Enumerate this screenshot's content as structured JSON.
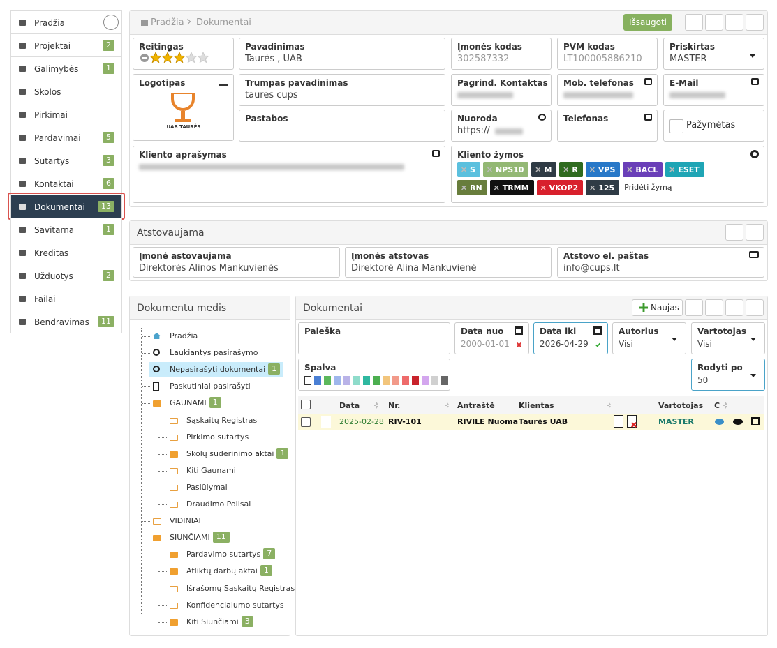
{
  "sidebar": [
    {
      "label": "Pradžia"
    },
    {
      "label": "Projektai",
      "badge": 2
    },
    {
      "label": "Galimybės",
      "badge": 1
    },
    {
      "label": "Skolos"
    },
    {
      "label": "Pirkimai"
    },
    {
      "label": "Pardavimai",
      "badge": 5
    },
    {
      "label": "Sutartys",
      "badge": 3
    },
    {
      "label": "Kontaktai",
      "badge": 6
    },
    {
      "label": "Dokumentai",
      "badge": 13,
      "active": true
    },
    {
      "label": "Savitarna",
      "badge": 1
    },
    {
      "label": "Kreditas"
    },
    {
      "label": "Užduotys",
      "badge": 2
    },
    {
      "label": "Failai"
    },
    {
      "label": "Bendravimas",
      "badge": 11
    }
  ],
  "breadcrumb": [
    "Pradžia",
    "Dokumentai"
  ],
  "save_button": "Išsaugoti",
  "client_fields": [
    {
      "label": "Reitingas",
      "rating": 3
    },
    {
      "label": "Pavadinimas",
      "value": "Taurės , UAB"
    },
    {
      "label": "Įmonės kodas",
      "value": "302587332"
    },
    {
      "label": "PVM kodas",
      "value": "LT100005886210"
    },
    {
      "label": "Priskirtas",
      "value": "MASTER"
    },
    {
      "label": "Logotipas",
      "logo_text": "UAB TAURĖS"
    },
    {
      "label": "Trumpas pavadinimas",
      "value": "taures cups"
    },
    {
      "label": "Pagrind. Kontaktas"
    },
    {
      "label": "Mob. telefonas"
    },
    {
      "label": "E-Mail"
    },
    {
      "label": "Pastabos"
    },
    {
      "label": "Nuoroda",
      "value": "https://"
    },
    {
      "label": "Telefonas"
    },
    {
      "label": "Pažymėtas"
    },
    {
      "label": "Kliento aprašymas"
    },
    {
      "label": "Kliento žymos"
    }
  ],
  "tags": [
    {
      "name": "S",
      "color": "#5bc0de"
    },
    {
      "name": "NPS10",
      "color": "#93b874"
    },
    {
      "name": "M",
      "color": "#2f3b45"
    },
    {
      "name": "R",
      "color": "#2f6b1f"
    },
    {
      "name": "VPS",
      "color": "#2878c8"
    },
    {
      "name": "BACL",
      "color": "#6a3fb8"
    },
    {
      "name": "ESET",
      "color": "#1fa5b5"
    },
    {
      "name": "RN",
      "color": "#687d3c"
    },
    {
      "name": "TRMM",
      "color": "#111111"
    },
    {
      "name": "VKOP2",
      "color": "#d8202c"
    },
    {
      "name": "125",
      "color": "#2f3b45"
    }
  ],
  "add_tag": "Pridėti žymą",
  "representation": {
    "title": "Atstovaujama",
    "fields": [
      {
        "label": "Įmonė astovaujama",
        "value": "Direktorės Alinos Mankuvienės"
      },
      {
        "label": "Įmonės atstovas",
        "value": "Direktorė Alina Mankuvienė"
      },
      {
        "label": "Atstovo el. paštas",
        "value": "info@cups.lt"
      }
    ]
  },
  "tree": {
    "title": "Dokumentu medis",
    "items": [
      {
        "label": "Pradžia",
        "level": 0,
        "icon": "home"
      },
      {
        "label": "Laukiantys pasirašymo",
        "level": 0,
        "icon": "clock"
      },
      {
        "label": "Nepasirašyti dokumentai",
        "level": 0,
        "icon": "clock",
        "badge": 1,
        "selected": true
      },
      {
        "label": "Paskutiniai pasirašyti",
        "level": 0,
        "icon": "doc"
      },
      {
        "label": "GAUNAMI",
        "level": 0,
        "icon": "folder",
        "badge": 1
      },
      {
        "label": "Sąskaitų Registras",
        "level": 1,
        "icon": "folder"
      },
      {
        "label": "Pirkimo sutartys",
        "level": 1,
        "icon": "folder"
      },
      {
        "label": "Skolų suderinimo aktai",
        "level": 1,
        "icon": "folder",
        "badge": 1
      },
      {
        "label": "Kiti Gaunami",
        "level": 1,
        "icon": "folder"
      },
      {
        "label": "Pasiūlymai",
        "level": 1,
        "icon": "folder"
      },
      {
        "label": "Draudimo Polisai",
        "level": 1,
        "icon": "folder"
      },
      {
        "label": "VIDINIAI",
        "level": 0,
        "icon": "folder"
      },
      {
        "label": "SIUNČIAMI",
        "level": 0,
        "icon": "folder",
        "badge": 11
      },
      {
        "label": "Pardavimo sutartys",
        "level": 1,
        "icon": "folder",
        "badge": 7
      },
      {
        "label": "Atliktų darbų aktai",
        "level": 1,
        "icon": "folder",
        "badge": 1
      },
      {
        "label": "Išrašomų Sąskaitų Registras",
        "level": 1,
        "icon": "folder"
      },
      {
        "label": "Konfidencialumo sutartys",
        "level": 1,
        "icon": "folder"
      },
      {
        "label": "Kiti Siunčiami",
        "level": 1,
        "icon": "folder",
        "badge": 3
      }
    ]
  },
  "documents": {
    "title": "Dokumentai",
    "new_button": "Naujas",
    "filters": [
      {
        "label": "Paieška"
      },
      {
        "label": "Data nuo",
        "value": "2000-01-01"
      },
      {
        "label": "Data iki",
        "value": "2026-04-29"
      },
      {
        "label": "Autorius",
        "value": "Visi"
      },
      {
        "label": "Vartotojas",
        "value": "Visi"
      },
      {
        "label": "Spalva"
      },
      {
        "label": "Rodyti po",
        "value": 50
      }
    ],
    "colors": [
      "#ffffff",
      "#4a7fd4",
      "#5cb85c",
      "#9fb7ec",
      "#b9b3e8",
      "#8fdccb",
      "#2fb8a0",
      "#4caf50",
      "#f2c57c",
      "#f29a8a",
      "#ee6b6b",
      "#c8232c",
      "#d3a6ee",
      "#d0d0d0",
      "#666666"
    ],
    "columns": [
      "Data",
      "Nr.",
      "Antraštė",
      "Klientas",
      "Vartotojas",
      "C"
    ],
    "rows": [
      [
        "2025-02-28",
        "RIV-101",
        "RIVILE Nuoma",
        "Taurės UAB",
        "MASTER"
      ]
    ]
  }
}
